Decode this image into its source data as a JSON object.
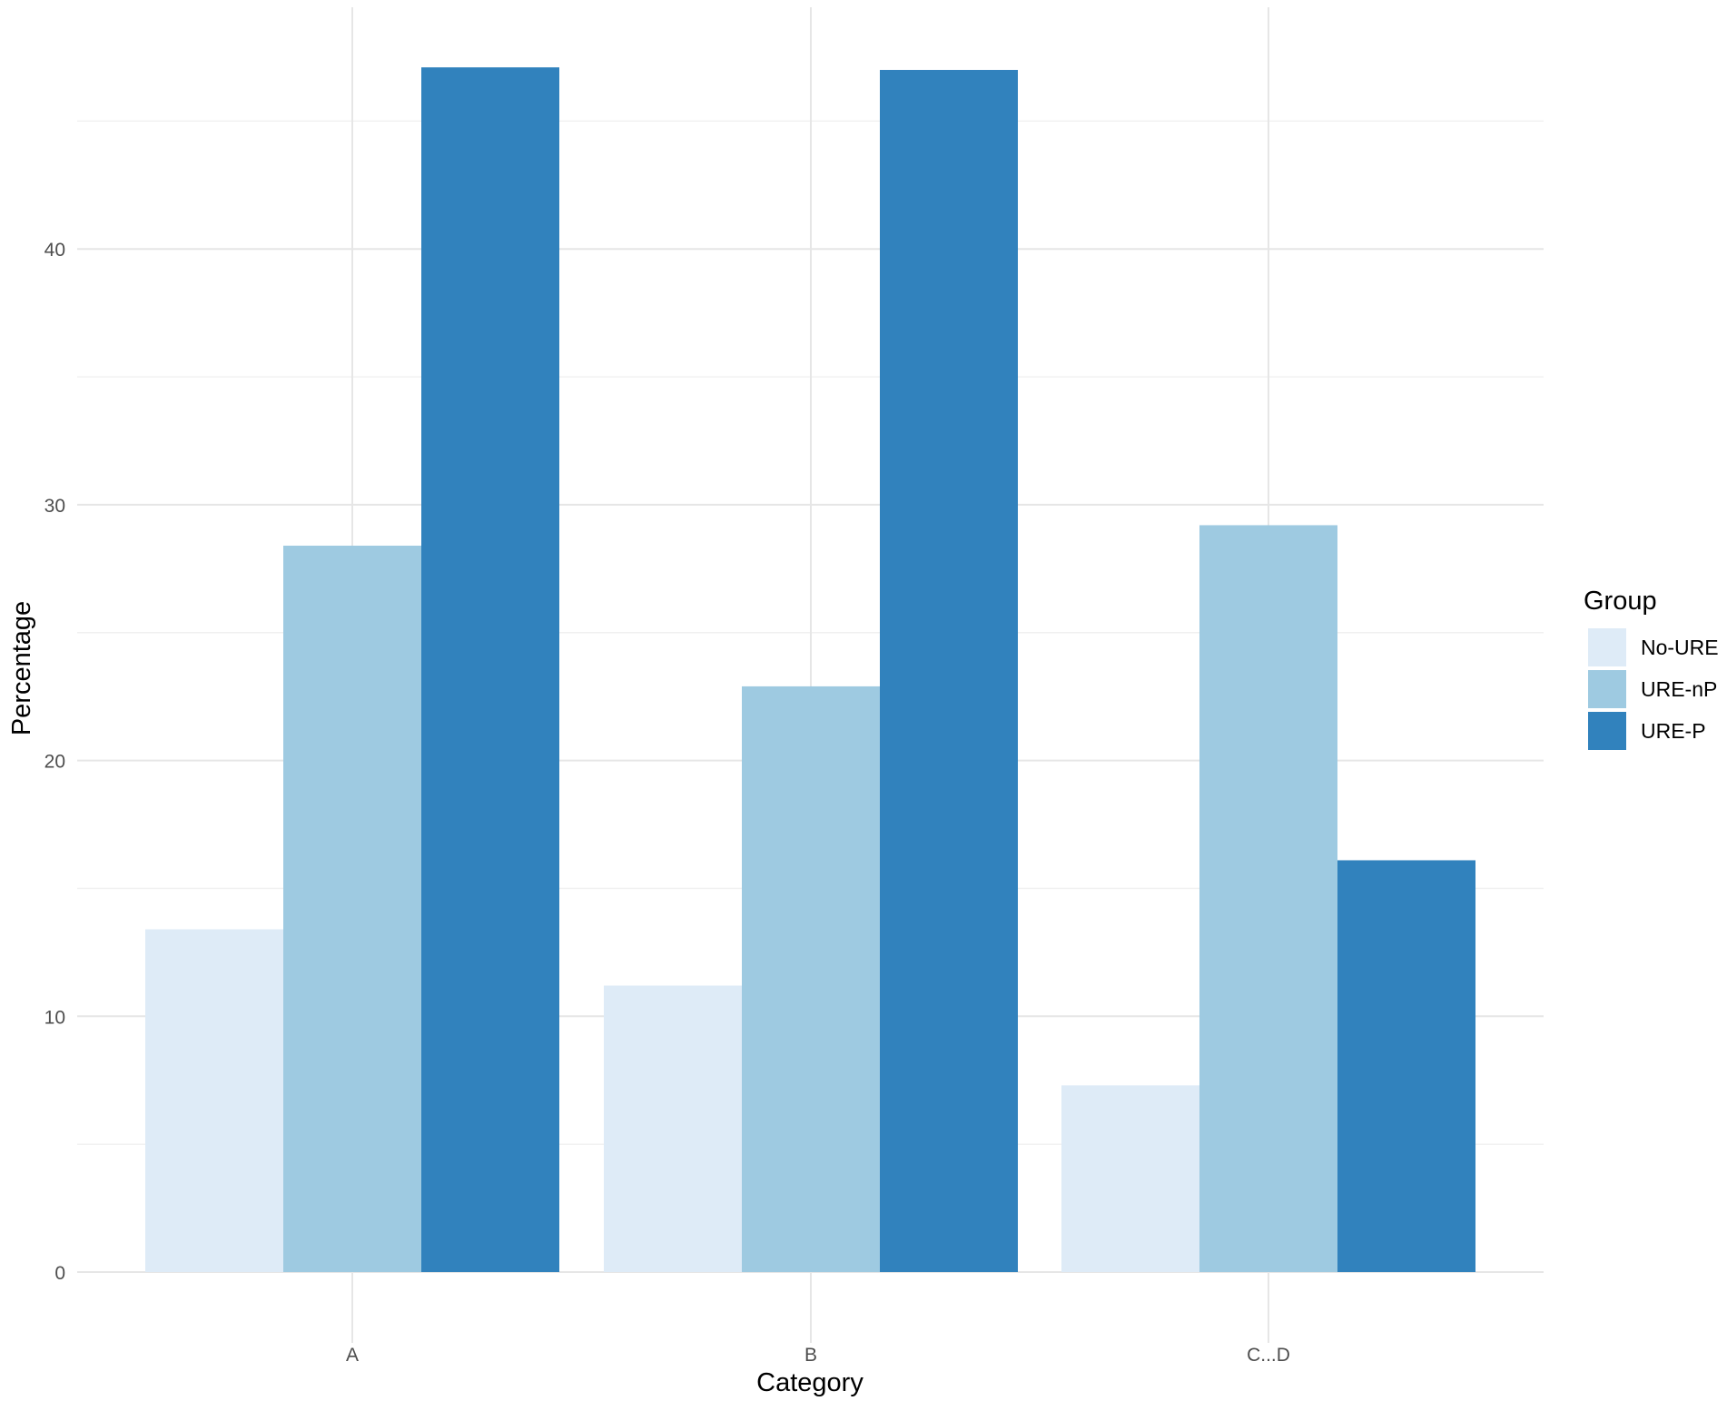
{
  "chart_data": {
    "type": "bar",
    "title": "",
    "xlabel": "Category",
    "ylabel": "Percentage",
    "categories": [
      "A",
      "B",
      "C...D"
    ],
    "series": [
      {
        "name": "No-URE",
        "color": "#deebf7",
        "values": [
          13.4,
          11.2,
          7.3
        ]
      },
      {
        "name": "URE-nP",
        "color": "#9ecae1",
        "values": [
          28.4,
          22.9,
          29.2
        ]
      },
      {
        "name": "URE-P",
        "color": "#3182bd",
        "values": [
          47.1,
          47.0,
          16.1
        ]
      }
    ],
    "ylim": [
      0,
      49.5
    ],
    "yticks": [
      0,
      10,
      20,
      30,
      40
    ],
    "ytick_labels": [
      "0",
      "10",
      "20",
      "30",
      "40"
    ],
    "grid": true,
    "legend": {
      "title": "Group",
      "position": "right"
    }
  }
}
